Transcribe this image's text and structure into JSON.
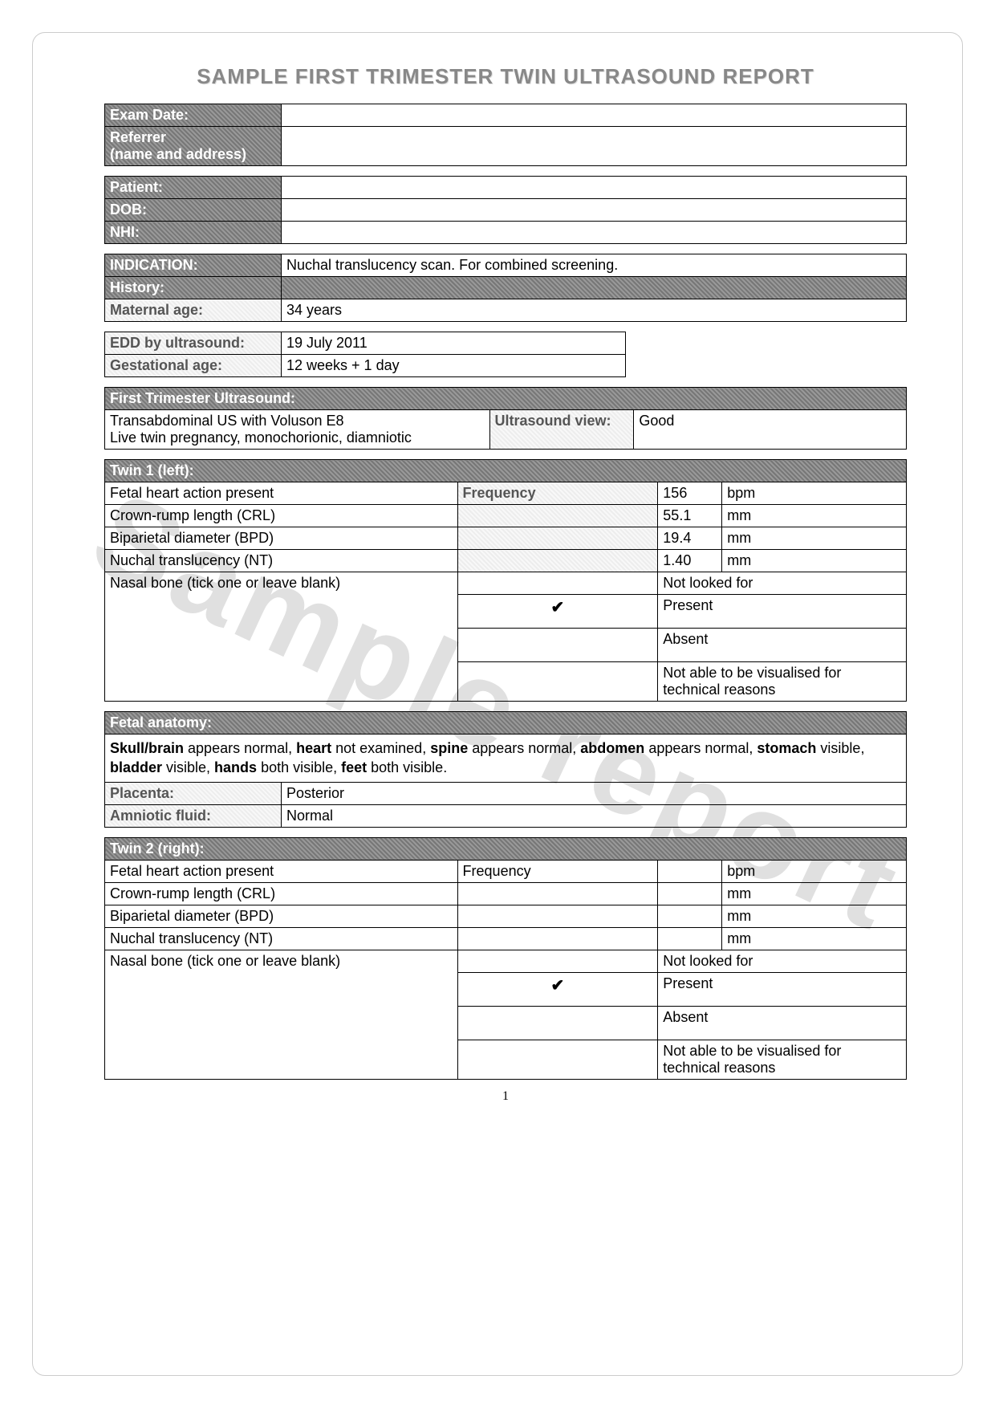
{
  "title": "SAMPLE FIRST TRIMESTER TWIN ULTRASOUND REPORT",
  "watermark": "Sample report",
  "colors": {
    "title_color": "#888888",
    "border_color": "#000000",
    "hatch_a": "#e6e6e6",
    "hatch_b": "#f3f3f3",
    "hatch_dark_a": "#777777",
    "hatch_dark_b": "#999999",
    "background": "#ffffff"
  },
  "typography": {
    "title_fontsize": 26,
    "body_fontsize": 18,
    "font_family": "Arial"
  },
  "header_block": {
    "exam_date_label": "Exam Date:",
    "exam_date": "",
    "referrer_label": "Referrer",
    "referrer_sub": "(name and address)",
    "referrer": ""
  },
  "patient_block": {
    "patient_label": "Patient:",
    "patient": "",
    "dob_label": "DOB:",
    "dob": "",
    "nhi_label": "NHI:",
    "nhi": ""
  },
  "indication_block": {
    "indication_label": "INDICATION:",
    "indication": "Nuchal translucency scan.  For combined screening.",
    "history_label": "History:",
    "history": "",
    "maternal_age_label": "Maternal age:",
    "maternal_age": "34 years"
  },
  "edd_block": {
    "edd_label": "EDD by ultrasound:",
    "edd": "19 July 2011",
    "ga_label": "Gestational age:",
    "ga": "12 weeks + 1 day"
  },
  "ft_us": {
    "header": "First Trimester Ultrasound:",
    "left_line1": "Transabdominal US with Voluson E8",
    "left_line2": "Live twin pregnancy, monochorionic, diamniotic",
    "view_label": "Ultrasound view:",
    "view": "Good"
  },
  "twin1": {
    "header": "Twin 1 (left):",
    "rows": [
      {
        "label": "Fetal heart action present",
        "mid": "Frequency",
        "val": "156",
        "unit": "bpm"
      },
      {
        "label": "Crown-rump length (CRL)",
        "mid": "",
        "val": "55.1",
        "unit": "mm"
      },
      {
        "label": "Biparietal diameter (BPD)",
        "mid": "",
        "val": "19.4",
        "unit": "mm"
      },
      {
        "label": "Nuchal translucency (NT)",
        "mid": "",
        "val": "1.40",
        "unit": "mm"
      }
    ],
    "nasal_label": "Nasal bone (tick one or leave blank)",
    "nasal_options": [
      {
        "tick": "",
        "label": "Not looked for"
      },
      {
        "tick": "✔",
        "label": "Present"
      },
      {
        "tick": "",
        "label": "Absent"
      },
      {
        "tick": "",
        "label": "Not able to be visualised for technical reasons"
      }
    ]
  },
  "fetal_anatomy": {
    "header": "Fetal anatomy:",
    "text_parts": [
      {
        "bold": true,
        "t": "Skull/brain "
      },
      {
        "bold": false,
        "t": "appears normal, "
      },
      {
        "bold": true,
        "t": "heart"
      },
      {
        "bold": false,
        "t": " not examined, "
      },
      {
        "bold": true,
        "t": "spine"
      },
      {
        "bold": false,
        "t": " appears normal, "
      },
      {
        "bold": true,
        "t": "abdomen"
      },
      {
        "bold": false,
        "t": " appears normal, "
      },
      {
        "bold": true,
        "t": "stomach"
      },
      {
        "bold": false,
        "t": " visible, "
      },
      {
        "bold": true,
        "t": "bladder"
      },
      {
        "bold": false,
        "t": " visible, "
      },
      {
        "bold": true,
        "t": "hands"
      },
      {
        "bold": false,
        "t": " both visible, "
      },
      {
        "bold": true,
        "t": "feet"
      },
      {
        "bold": false,
        "t": " both visible."
      }
    ],
    "placenta_label": "Placenta:",
    "placenta": "Posterior",
    "amniotic_label": "Amniotic fluid:",
    "amniotic": "Normal"
  },
  "twin2": {
    "header": "Twin 2 (right):",
    "rows": [
      {
        "label": "Fetal heart action present",
        "mid": "Frequency",
        "val": "",
        "unit": "bpm"
      },
      {
        "label": "Crown-rump length (CRL)",
        "mid": "",
        "val": "",
        "unit": "mm"
      },
      {
        "label": "Biparietal diameter (BPD)",
        "mid": "",
        "val": "",
        "unit": "mm"
      },
      {
        "label": "Nuchal translucency (NT)",
        "mid": "",
        "val": "",
        "unit": "mm"
      }
    ],
    "nasal_label": "Nasal bone (tick one or leave blank)",
    "nasal_options": [
      {
        "tick": "",
        "label": "Not looked for"
      },
      {
        "tick": "✔",
        "label": "Present"
      },
      {
        "tick": "",
        "label": "Absent"
      },
      {
        "tick": "",
        "label": "Not able to be visualised for technical reasons"
      }
    ]
  },
  "page_number": "1"
}
